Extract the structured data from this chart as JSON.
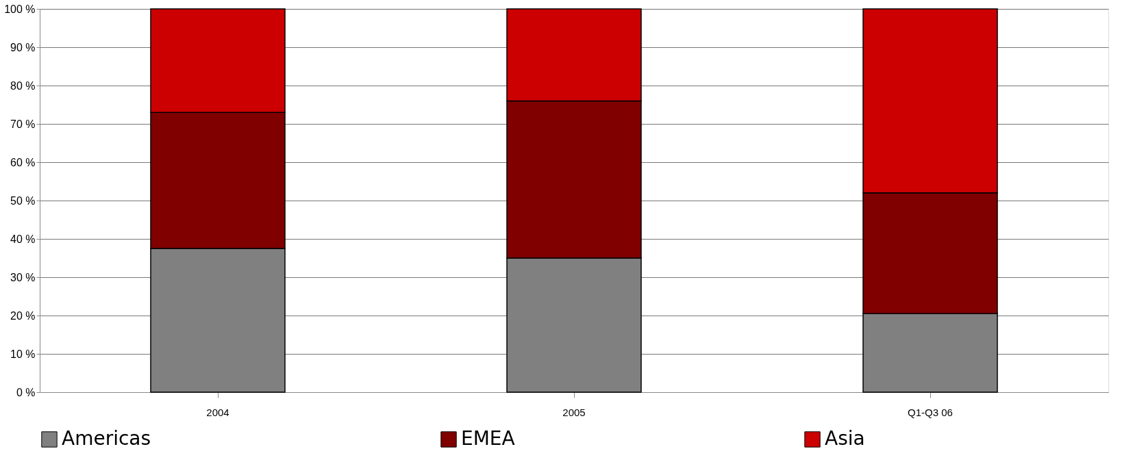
{
  "chart_data": {
    "type": "bar",
    "stacked": true,
    "categories": [
      "2004",
      "2005",
      "Q1-Q3 06"
    ],
    "series": [
      {
        "name": "Americas",
        "color": "#808080",
        "values": [
          37.5,
          35,
          20.5
        ]
      },
      {
        "name": "EMEA",
        "color": "#800000",
        "values": [
          35.5,
          41,
          31.5
        ]
      },
      {
        "name": "Asia",
        "color": "#cc0000",
        "values": [
          27,
          24,
          48
        ]
      }
    ],
    "ylim": [
      0,
      100
    ],
    "yticks": [
      {
        "value": 0,
        "label": "0 %"
      },
      {
        "value": 10,
        "label": "10 %"
      },
      {
        "value": 20,
        "label": "20 %"
      },
      {
        "value": 30,
        "label": "30 %"
      },
      {
        "value": 40,
        "label": "40 %"
      },
      {
        "value": 50,
        "label": "50 %"
      },
      {
        "value": 60,
        "label": "60 %"
      },
      {
        "value": 70,
        "label": "70 %"
      },
      {
        "value": 80,
        "label": "80 %"
      },
      {
        "value": 90,
        "label": "90 %"
      },
      {
        "value": 100,
        "label": "100 %"
      }
    ],
    "grid": "y",
    "legend": "bottom"
  }
}
